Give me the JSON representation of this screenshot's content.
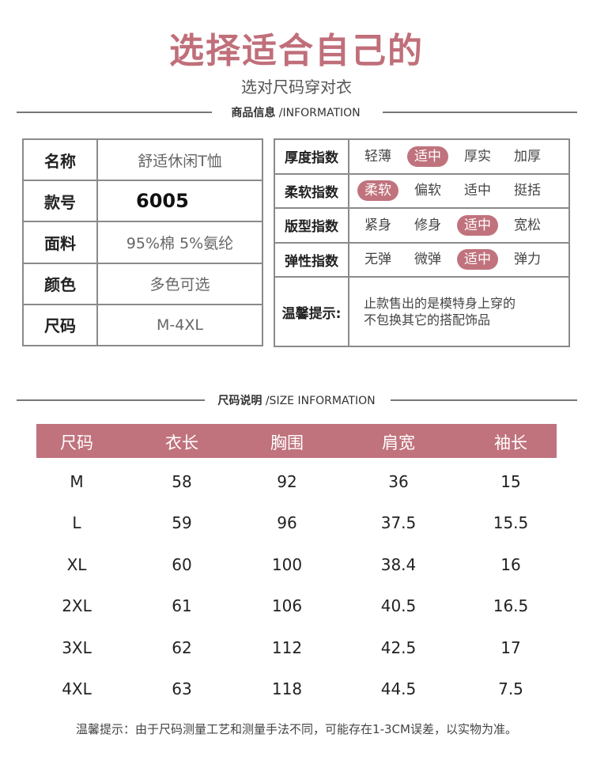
{
  "title": "选择适合自己的",
  "subtitle": "选对尺码穿对衣",
  "product_section": {
    "heading_cn": "商品信息",
    "heading_en": "/INFORMATION"
  },
  "product_info": [
    {
      "label": "名称",
      "value": "舒适休闲T恤"
    },
    {
      "label": "款号",
      "value": "6005"
    },
    {
      "label": "面料",
      "value": "95%棉 5%氨纶"
    },
    {
      "label": "颜色",
      "value": "多色可选"
    },
    {
      "label": "尺码",
      "value": "M-4XL"
    }
  ],
  "indices": [
    {
      "label": "厚度指数",
      "options": [
        "轻薄",
        "适中",
        "厚实",
        "加厚"
      ],
      "selected": 1
    },
    {
      "label": "柔软指数",
      "options": [
        "柔软",
        "偏软",
        "适中",
        "挺括"
      ],
      "selected": 0
    },
    {
      "label": "版型指数",
      "options": [
        "紧身",
        "修身",
        "适中",
        "宽松"
      ],
      "selected": 2
    },
    {
      "label": "弹性指数",
      "options": [
        "无弹",
        "微弹",
        "适中",
        "弹力"
      ],
      "selected": 2
    }
  ],
  "tip": {
    "label": "温馨提示:",
    "line1": "止款售出的是模特身上穿的",
    "line2": "不包换其它的搭配饰品"
  },
  "size_section": {
    "heading_cn": "尺码说明",
    "heading_en": "/SIZE INFORMATION"
  },
  "size_table": {
    "headers": [
      "尺码",
      "衣长",
      "胸围",
      "肩宽",
      "袖长"
    ],
    "rows": [
      [
        "M",
        "58",
        "92",
        "36",
        "15"
      ],
      [
        "L",
        "59",
        "96",
        "37.5",
        "15.5"
      ],
      [
        "XL",
        "60",
        "100",
        "38.4",
        "16"
      ],
      [
        "2XL",
        "61",
        "106",
        "40.5",
        "16.5"
      ],
      [
        "3XL",
        "62",
        "112",
        "42.5",
        "17"
      ],
      [
        "4XL",
        "63",
        "118",
        "44.5",
        "7.5"
      ]
    ]
  },
  "footer_note": "温馨提示：由于尺码测量工艺和测量手法不同，可能存在1-3CM误差，以实物为准。",
  "colors": {
    "accent": "#c0737d",
    "title": "#c06f7a"
  }
}
